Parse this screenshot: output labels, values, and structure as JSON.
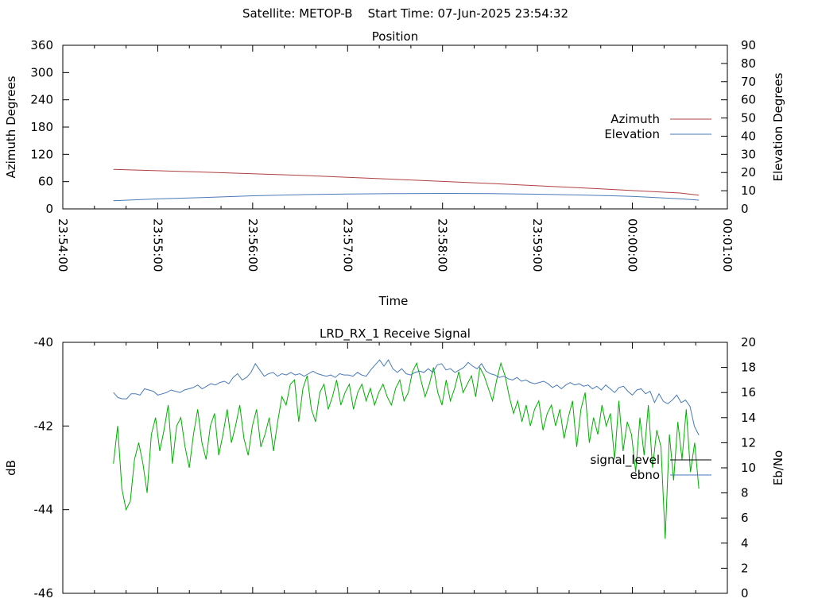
{
  "page_title": "Satellite: METOP-B    Start Time: 07-Jun-2025 23:54:32",
  "colors": {
    "azimuth": "#b04040",
    "elevation": "#4a7ab8",
    "signal_level": "#00b000",
    "ebno": "#4a7ab8",
    "legend_signal_level": "#000000",
    "axes": "#000000"
  },
  "chart_data": [
    {
      "type": "line",
      "title": "Position",
      "xlabel": "Time",
      "ylabel": "Azimuth Degrees",
      "y2label": "Elevation Degrees",
      "x_ticks": [
        "23:54:00",
        "23:55:00",
        "23:56:00",
        "23:57:00",
        "23:58:00",
        "23:59:00",
        "00:00:00",
        "00:01:00"
      ],
      "y_ticks": [
        "0",
        "60",
        "120",
        "180",
        "240",
        "300",
        "360"
      ],
      "y2_ticks": [
        "0",
        "10",
        "20",
        "30",
        "40",
        "50",
        "60",
        "70",
        "80",
        "90"
      ],
      "ylim": [
        0,
        360
      ],
      "y2lim": [
        0,
        90
      ],
      "legend_position": "right",
      "grid": false,
      "series": [
        {
          "name": "Azimuth",
          "axis": "left",
          "x": [
            "23:54:32",
            "23:55:30",
            "23:56:30",
            "23:57:30",
            "23:58:30",
            "23:59:30",
            "00:00:30",
            "00:00:42"
          ],
          "values": [
            87,
            81,
            74,
            65,
            56,
            46,
            35,
            30
          ]
        },
        {
          "name": "Elevation",
          "axis": "right",
          "x": [
            "23:54:32",
            "23:55:00",
            "23:55:30",
            "23:56:00",
            "23:56:30",
            "23:57:00",
            "23:57:30",
            "23:58:00",
            "23:58:30",
            "23:59:00",
            "23:59:30",
            "00:00:00",
            "00:00:30",
            "00:00:42"
          ],
          "values": [
            4.5,
            5.5,
            6.3,
            7.2,
            7.8,
            8.2,
            8.4,
            8.5,
            8.4,
            8.1,
            7.6,
            6.9,
            5.6,
            4.8
          ]
        }
      ]
    },
    {
      "type": "line",
      "title": "LRD_RX_1 Receive Signal",
      "xlabel": "",
      "ylabel": "dB",
      "y2label": "Eb/No",
      "y_ticks": [
        "-40",
        "-42",
        "-44",
        "-46"
      ],
      "y2_ticks": [
        "0",
        "2",
        "4",
        "6",
        "8",
        "10",
        "12",
        "14",
        "16",
        "18",
        "20"
      ],
      "ylim": [
        -46,
        -40
      ],
      "y2lim": [
        0,
        20
      ],
      "xlim": [
        "23:54:00",
        "00:01:00"
      ],
      "legend_position": "right",
      "grid": false,
      "series": [
        {
          "name": "signal_level",
          "axis": "left",
          "x_range": [
            "23:54:32",
            "00:00:42"
          ],
          "values": [
            -42.9,
            -42.0,
            -43.5,
            -44.0,
            -43.8,
            -42.8,
            -42.4,
            -42.9,
            -43.6,
            -42.2,
            -41.8,
            -42.6,
            -42.1,
            -41.5,
            -42.9,
            -42.0,
            -41.8,
            -42.5,
            -43.0,
            -42.2,
            -41.6,
            -42.4,
            -42.8,
            -42.0,
            -41.7,
            -42.7,
            -42.2,
            -41.6,
            -42.4,
            -42.0,
            -41.5,
            -42.3,
            -42.7,
            -42.0,
            -41.6,
            -42.5,
            -42.2,
            -41.8,
            -42.6,
            -41.9,
            -41.3,
            -41.5,
            -41.0,
            -40.9,
            -41.9,
            -41.1,
            -40.8,
            -41.6,
            -41.9,
            -41.2,
            -41.0,
            -41.6,
            -41.3,
            -40.9,
            -41.5,
            -41.2,
            -41.0,
            -41.6,
            -41.2,
            -41.0,
            -41.4,
            -41.1,
            -41.5,
            -41.2,
            -41.0,
            -41.3,
            -41.5,
            -41.1,
            -40.9,
            -41.4,
            -41.2,
            -40.7,
            -40.5,
            -40.9,
            -41.3,
            -41.0,
            -40.6,
            -41.2,
            -41.5,
            -40.9,
            -41.4,
            -41.1,
            -40.7,
            -41.2,
            -41.0,
            -40.8,
            -41.3,
            -40.6,
            -40.8,
            -41.1,
            -41.4,
            -40.9,
            -40.5,
            -40.8,
            -41.3,
            -41.7,
            -41.4,
            -41.9,
            -41.5,
            -42.0,
            -41.6,
            -41.4,
            -42.1,
            -41.7,
            -41.5,
            -42.0,
            -41.6,
            -42.3,
            -41.8,
            -41.4,
            -42.5,
            -41.6,
            -41.2,
            -42.4,
            -41.8,
            -42.2,
            -41.5,
            -42.0,
            -41.7,
            -42.8,
            -41.4,
            -42.6,
            -41.9,
            -42.2,
            -43.1,
            -41.8,
            -42.7,
            -41.5,
            -43.0,
            -42.1,
            -42.5,
            -44.7,
            -42.2,
            -43.3,
            -41.9,
            -42.8,
            -41.6,
            -43.1,
            -42.4,
            -43.5
          ]
        },
        {
          "name": "ebno",
          "axis": "right",
          "x_range": [
            "23:54:32",
            "00:00:42"
          ],
          "values": [
            16.0,
            15.6,
            15.5,
            15.5,
            15.9,
            15.9,
            15.8,
            16.3,
            16.2,
            16.1,
            15.8,
            15.9,
            16.0,
            16.2,
            16.1,
            16.0,
            16.2,
            16.3,
            16.4,
            16.6,
            16.3,
            16.5,
            16.7,
            16.6,
            16.8,
            16.9,
            16.7,
            17.2,
            17.5,
            17.0,
            17.2,
            17.6,
            18.3,
            17.8,
            17.3,
            17.5,
            17.6,
            17.3,
            17.5,
            17.4,
            17.6,
            17.4,
            17.5,
            17.3,
            17.5,
            17.7,
            17.5,
            17.4,
            17.3,
            17.4,
            17.2,
            17.5,
            17.4,
            17.4,
            17.3,
            17.6,
            17.4,
            17.3,
            17.8,
            18.2,
            18.6,
            18.1,
            18.6,
            17.9,
            17.6,
            17.9,
            17.5,
            17.4,
            17.6,
            17.7,
            17.6,
            17.9,
            17.6,
            18.2,
            18.3,
            17.8,
            17.9,
            17.6,
            17.8,
            18.0,
            18.4,
            18.1,
            17.9,
            18.3,
            17.7,
            17.5,
            17.4,
            17.2,
            17.3,
            17.1,
            17.0,
            17.2,
            16.9,
            17.0,
            16.8,
            16.7,
            16.8,
            16.9,
            16.7,
            16.4,
            16.6,
            16.3,
            16.6,
            16.8,
            16.6,
            16.7,
            16.5,
            16.6,
            16.3,
            16.5,
            16.2,
            16.6,
            16.3,
            16.0,
            16.4,
            16.5,
            16.1,
            15.8,
            16.2,
            16.3,
            15.9,
            16.1,
            15.2,
            15.9,
            15.3,
            15.1,
            15.4,
            15.8,
            15.2,
            15.4,
            14.9,
            13.3,
            12.6
          ]
        }
      ]
    }
  ]
}
